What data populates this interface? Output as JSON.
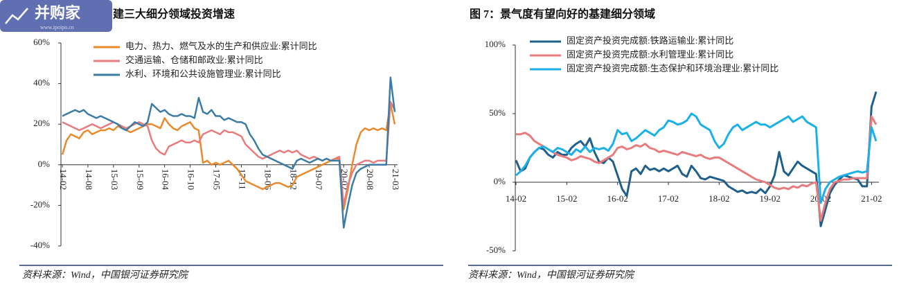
{
  "logo": {
    "name": "并购家",
    "url": "www.ipoipo.cn"
  },
  "chart_data": [
    {
      "type": "line",
      "title": "建三大细分领域投资增速",
      "source": "资料来源：Wind，中国银河证券研究院",
      "categories": [
        "14-02",
        null,
        null,
        null,
        null,
        null,
        "14-08",
        null,
        null,
        null,
        null,
        null,
        "15-03",
        null,
        null,
        null,
        null,
        null,
        "15-09",
        null,
        null,
        null,
        null,
        null,
        "16-04",
        null,
        null,
        null,
        null,
        null,
        "16-10",
        null,
        null,
        null,
        null,
        null,
        "17-05",
        null,
        null,
        null,
        null,
        null,
        "17-11",
        null,
        null,
        null,
        null,
        null,
        "18-06",
        null,
        null,
        null,
        null,
        null,
        "18-12",
        null,
        null,
        null,
        null,
        null,
        "19-07",
        null,
        null,
        null,
        null,
        null,
        "20-02",
        null,
        null,
        null,
        null,
        null,
        "20-08",
        null,
        null,
        null,
        null,
        null,
        "21-03"
      ],
      "ylim": [
        -40,
        60
      ],
      "yticks": [
        {
          "value": -40,
          "label": "-40%"
        },
        {
          "value": -20,
          "label": "-20%"
        },
        {
          "value": 0,
          "label": "0%"
        },
        {
          "value": 20,
          "label": "20%"
        },
        {
          "value": 40,
          "label": "40%"
        },
        {
          "value": 60,
          "label": "60%"
        }
      ],
      "series": [
        {
          "name": "电力、热力、燃气及水的生产和供应业:累计同比",
          "color": "#e8892b",
          "values": [
            5,
            12,
            15,
            14,
            13,
            16,
            17,
            15,
            16,
            17,
            17,
            18,
            17,
            19,
            18,
            17,
            16,
            17,
            18,
            19,
            20,
            20,
            19,
            18,
            23,
            20,
            18,
            17,
            19,
            20,
            21,
            18,
            17,
            1,
            2,
            0,
            1,
            0,
            1,
            2,
            0,
            -2,
            -5,
            -8,
            -9,
            -10,
            -11,
            -12,
            -11,
            -10,
            -9,
            -9,
            -10,
            -11,
            -10,
            -6,
            -5,
            -4,
            -3,
            -2,
            -1,
            0,
            1,
            2,
            3,
            3,
            -22,
            -12,
            0,
            10,
            16,
            18,
            17,
            18,
            17,
            18,
            17,
            30,
            20
          ]
        },
        {
          "name": "交通运输、仓储和邮政业:累计同比",
          "color": "#e87b7b",
          "values": [
            21,
            20,
            19,
            18,
            17,
            18,
            19,
            20,
            19,
            18,
            19,
            20,
            21,
            20,
            19,
            18,
            19,
            20,
            21,
            20,
            19,
            12,
            8,
            6,
            5,
            9,
            10,
            11,
            12,
            11,
            11,
            12,
            11,
            15,
            16,
            17,
            16,
            15,
            17,
            16,
            16,
            15,
            14,
            10,
            8,
            6,
            4,
            3,
            4,
            5,
            6,
            7,
            6,
            7,
            6,
            7,
            5,
            4,
            3,
            4,
            3,
            2,
            3,
            2,
            3,
            4,
            -20,
            -10,
            -4,
            0,
            1,
            2,
            2,
            1,
            2,
            2,
            2,
            31,
            27
          ]
        },
        {
          "name": "水利、环境和公共设施管理业:累计同比",
          "color": "#3a7ca5",
          "values": [
            24,
            25,
            26,
            27,
            26,
            27,
            25,
            24,
            23,
            24,
            23,
            22,
            21,
            20,
            18,
            17,
            19,
            21,
            20,
            19,
            21,
            30,
            28,
            26,
            27,
            25,
            24,
            24,
            25,
            24,
            24,
            23,
            33,
            26,
            25,
            27,
            24,
            24,
            22,
            23,
            22,
            21,
            21,
            20,
            15,
            12,
            8,
            5,
            4,
            3,
            2,
            1,
            0,
            -1,
            -2,
            2,
            3,
            2,
            1,
            2,
            3,
            2,
            3,
            2,
            2,
            2,
            -31,
            -20,
            -10,
            -4,
            -2,
            -1,
            0,
            0,
            0,
            0,
            0,
            43,
            26
          ]
        }
      ]
    },
    {
      "type": "line",
      "title": "图 7：景气度有望向好的基建细分领域",
      "source": "资料来源：Wind，中国银河证券研究院",
      "categories": [
        "14-02",
        null,
        null,
        null,
        null,
        null,
        null,
        null,
        null,
        null,
        null,
        "15-02",
        null,
        null,
        null,
        null,
        null,
        null,
        null,
        null,
        null,
        null,
        "16-02",
        null,
        null,
        null,
        null,
        null,
        null,
        null,
        null,
        null,
        null,
        "17-02",
        null,
        null,
        null,
        null,
        null,
        null,
        null,
        null,
        null,
        null,
        "18-02",
        null,
        null,
        null,
        null,
        null,
        null,
        null,
        null,
        null,
        null,
        "19-02",
        null,
        null,
        null,
        null,
        null,
        null,
        null,
        null,
        null,
        null,
        "20-02",
        null,
        null,
        null,
        null,
        null,
        null,
        null,
        null,
        null,
        null,
        "21-02",
        null
      ],
      "ylim": [
        -50,
        100
      ],
      "yticks": [
        {
          "value": -50,
          "label": "-50%"
        },
        {
          "value": 0,
          "label": "0%"
        },
        {
          "value": 50,
          "label": "50%"
        },
        {
          "value": 100,
          "label": "100%"
        }
      ],
      "series": [
        {
          "name": "固定资产投资完成额:铁路运输业:累计同比",
          "color": "#1f5f8b",
          "values": [
            16,
            8,
            10,
            18,
            22,
            25,
            24,
            20,
            18,
            22,
            20,
            20,
            25,
            28,
            30,
            26,
            32,
            22,
            15,
            14,
            18,
            15,
            5,
            -5,
            -10,
            8,
            10,
            6,
            12,
            9,
            10,
            8,
            10,
            8,
            10,
            12,
            6,
            4,
            12,
            8,
            3,
            2,
            4,
            3,
            2,
            1,
            -3,
            -5,
            -7,
            -6,
            -8,
            -7,
            -8,
            -5,
            -8,
            -3,
            5,
            22,
            8,
            5,
            10,
            15,
            12,
            10,
            8,
            6,
            -32,
            -20,
            -8,
            -2,
            2,
            5,
            4,
            3,
            2,
            -3,
            -3,
            55,
            66
          ]
        },
        {
          "name": "固定资产投资完成额:水利管理业:累计同比",
          "color": "#e87b7b",
          "values": [
            35,
            35,
            36,
            34,
            30,
            28,
            26,
            24,
            22,
            20,
            19,
            18,
            16,
            17,
            19,
            18,
            17,
            15,
            14,
            16,
            18,
            20,
            25,
            26,
            24,
            25,
            27,
            26,
            28,
            25,
            24,
            22,
            23,
            22,
            21,
            20,
            22,
            21,
            20,
            19,
            20,
            18,
            17,
            18,
            18,
            16,
            14,
            12,
            10,
            8,
            6,
            4,
            2,
            1,
            0,
            -2,
            -4,
            -5,
            -4,
            -5,
            -3,
            -4,
            -2,
            -3,
            -1,
            0,
            -28,
            -15,
            -5,
            0,
            1,
            2,
            2,
            3,
            3,
            3,
            3,
            48,
            42
          ]
        },
        {
          "name": "固定资产投资完成额:生态保护和环境治理业:累计同比",
          "color": "#1ab0e8",
          "values": [
            5,
            8,
            12,
            18,
            22,
            25,
            26,
            24,
            22,
            25,
            24,
            22,
            20,
            24,
            22,
            26,
            22,
            25,
            24,
            25,
            23,
            28,
            38,
            35,
            36,
            30,
            32,
            35,
            38,
            36,
            34,
            38,
            40,
            45,
            44,
            42,
            43,
            45,
            50,
            48,
            42,
            40,
            38,
            30,
            25,
            28,
            35,
            40,
            42,
            38,
            40,
            42,
            44,
            42,
            42,
            40,
            42,
            44,
            46,
            48,
            44,
            46,
            48,
            44,
            42,
            40,
            -15,
            -5,
            0,
            2,
            4,
            5,
            6,
            7,
            8,
            7,
            8,
            40,
            30
          ]
        }
      ]
    }
  ]
}
